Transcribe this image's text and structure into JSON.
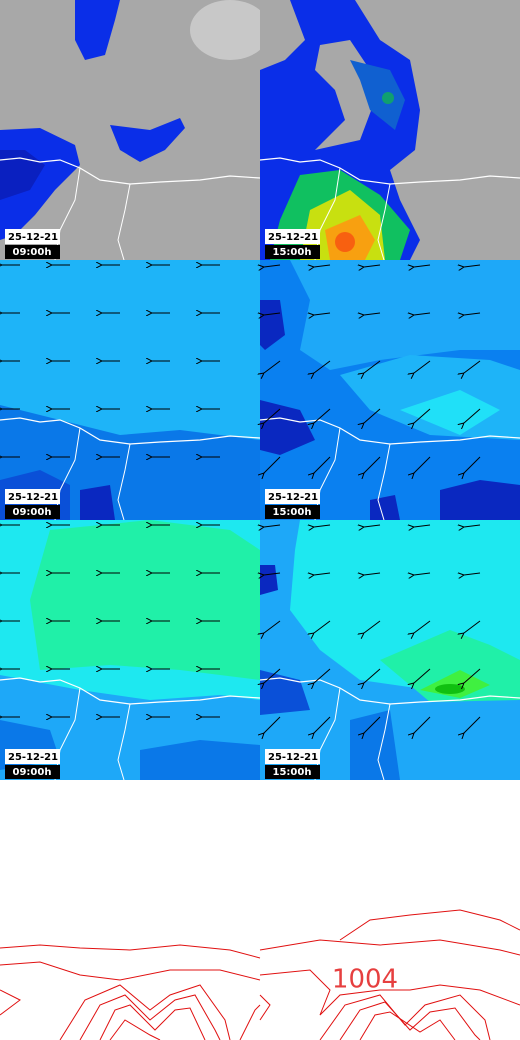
{
  "panels": [
    {
      "date": "25-12-21",
      "time": "09:00h"
    },
    {
      "date": "25-12-21",
      "time": "15:00h"
    },
    {
      "date": "25-12-21",
      "time": "09:00h"
    },
    {
      "date": "25-12-21",
      "time": "15:00h"
    },
    {
      "date": "25-12-21",
      "time": "09:00h"
    },
    {
      "date": "25-12-21",
      "time": "15:00h"
    }
  ],
  "contour_label": "1004"
}
